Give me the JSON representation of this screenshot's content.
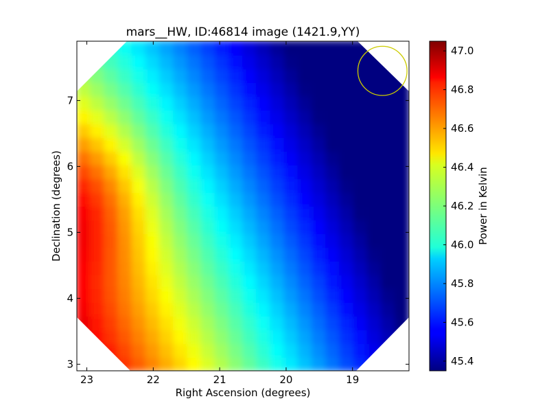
{
  "chart_data": {
    "type": "heatmap",
    "title": "mars__HW, ID:46814 image (1421.9,YY)",
    "xlabel": "Right Ascension (degrees)",
    "ylabel": "Declination (degrees)",
    "colorbar_label": "Power in Kelvin",
    "colormap": "jet",
    "xlim": [
      23.15,
      18.15
    ],
    "ylim": [
      2.9,
      7.9
    ],
    "x_ticks": [
      23,
      22,
      21,
      20,
      19
    ],
    "x_tick_labels": [
      "23",
      "22",
      "21",
      "20",
      "19"
    ],
    "y_ticks": [
      3,
      4,
      5,
      6,
      7
    ],
    "y_tick_labels": [
      "3",
      "4",
      "5",
      "6",
      "7"
    ],
    "value_range": [
      45.35,
      47.05
    ],
    "colorbar_ticks": [
      45.4,
      45.6,
      45.8,
      46.0,
      46.2,
      46.4,
      46.6,
      46.8,
      47.0
    ],
    "colorbar_tick_labels": [
      "45.4",
      "45.6",
      "45.8",
      "46.0",
      "46.2",
      "46.4",
      "46.6",
      "46.8",
      "47.0"
    ],
    "peak": {
      "ra": 23.05,
      "dec": 5.5,
      "value": 47.05
    },
    "gradient": "power decreases from the left (high RA) edge toward the upper right (low RA, high Dec)",
    "marker": {
      "shape": "circle",
      "ra": 18.55,
      "dec": 7.45,
      "radius_deg": 0.37,
      "color": "#cccc00"
    }
  }
}
